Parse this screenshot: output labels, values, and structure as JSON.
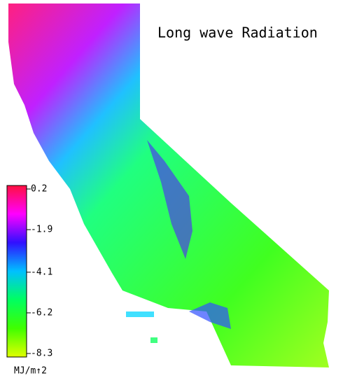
{
  "title": "Long wave Radiation",
  "colorbar": {
    "ticks": [
      0.2,
      -1.9,
      -4.1,
      -6.2,
      -8.3
    ],
    "unit": "MJ/m↑2",
    "colors": [
      "#ff1040",
      "#ff00ff",
      "#3010ff",
      "#00c0ff",
      "#00ff60",
      "#40ff00",
      "#e0ff00"
    ]
  }
}
